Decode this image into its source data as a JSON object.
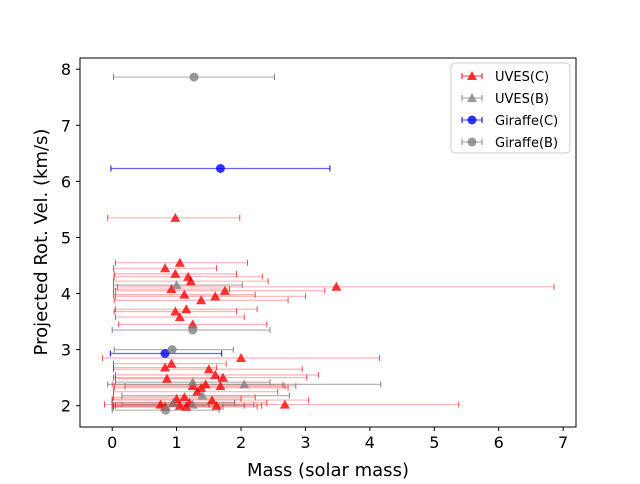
{
  "chart_data": {
    "type": "scatter",
    "title": "",
    "xlabel": "Mass (solar mass)",
    "ylabel": "Projected Rot. Vel. (km/s)",
    "xlim": [
      -0.5,
      7.2
    ],
    "ylim": [
      1.62,
      8.2
    ],
    "xticks": [
      0,
      1,
      2,
      3,
      4,
      5,
      6,
      7
    ],
    "yticks": [
      2,
      3,
      4,
      5,
      6,
      7,
      8
    ],
    "grid": false,
    "legend_position": "top-right",
    "colors": {
      "uves_c": "#ff0000",
      "uves_b": "#808080",
      "giraffe_c": "#0000ff",
      "giraffe_b": "#808080"
    },
    "series": [
      {
        "name": "UVES(C)",
        "marker": "triangle",
        "color": "#ff0000",
        "points": [
          {
            "x": 0.98,
            "y": 5.35,
            "xerr_low": 1.05,
            "xerr_high": 1.0
          },
          {
            "x": 1.05,
            "y": 4.55,
            "xerr_low": 1.0,
            "xerr_high": 1.05
          },
          {
            "x": 0.82,
            "y": 4.45,
            "xerr_low": 0.8,
            "xerr_high": 0.8
          },
          {
            "x": 0.98,
            "y": 4.35,
            "xerr_low": 0.95,
            "xerr_high": 0.95
          },
          {
            "x": 1.18,
            "y": 4.3,
            "xerr_low": 1.15,
            "xerr_high": 1.15
          },
          {
            "x": 1.22,
            "y": 4.22,
            "xerr_low": 1.2,
            "xerr_high": 1.2
          },
          {
            "x": 3.48,
            "y": 4.12,
            "xerr_low": 3.4,
            "xerr_high": 3.38
          },
          {
            "x": 0.92,
            "y": 4.08,
            "xerr_low": 0.9,
            "xerr_high": 0.9
          },
          {
            "x": 1.75,
            "y": 4.05,
            "xerr_low": 1.7,
            "xerr_high": 1.55
          },
          {
            "x": 1.12,
            "y": 3.98,
            "xerr_low": 1.1,
            "xerr_high": 1.1
          },
          {
            "x": 1.6,
            "y": 3.95,
            "xerr_low": 1.55,
            "xerr_high": 1.4
          },
          {
            "x": 1.38,
            "y": 3.88,
            "xerr_low": 1.35,
            "xerr_high": 1.35
          },
          {
            "x": 1.15,
            "y": 3.72,
            "xerr_low": 1.1,
            "xerr_high": 1.1
          },
          {
            "x": 0.98,
            "y": 3.68,
            "xerr_low": 0.95,
            "xerr_high": 0.95
          },
          {
            "x": 1.05,
            "y": 3.58,
            "xerr_low": 1.0,
            "xerr_high": 1.0
          },
          {
            "x": 1.25,
            "y": 3.45,
            "xerr_low": 1.15,
            "xerr_high": 1.15
          },
          {
            "x": 2.0,
            "y": 2.85,
            "xerr_low": 2.15,
            "xerr_high": 2.15
          },
          {
            "x": 0.92,
            "y": 2.75,
            "xerr_low": 0.9,
            "xerr_high": 0.85
          },
          {
            "x": 0.82,
            "y": 2.68,
            "xerr_low": 0.8,
            "xerr_high": 0.8
          },
          {
            "x": 1.5,
            "y": 2.65,
            "xerr_low": 1.48,
            "xerr_high": 1.45
          },
          {
            "x": 1.6,
            "y": 2.55,
            "xerr_low": 1.55,
            "xerr_high": 1.6
          },
          {
            "x": 1.72,
            "y": 2.5,
            "xerr_low": 1.7,
            "xerr_high": 1.3
          },
          {
            "x": 0.85,
            "y": 2.48,
            "xerr_low": 0.8,
            "xerr_high": 0.8
          },
          {
            "x": 1.45,
            "y": 2.38,
            "xerr_low": 1.45,
            "xerr_high": 1.2
          },
          {
            "x": 1.25,
            "y": 2.35,
            "xerr_low": 1.05,
            "xerr_high": 1.6
          },
          {
            "x": 1.68,
            "y": 2.35,
            "xerr_low": 1.65,
            "xerr_high": 1.0
          },
          {
            "x": 1.38,
            "y": 2.32,
            "xerr_low": 1.35,
            "xerr_high": 1.35
          },
          {
            "x": 1.32,
            "y": 2.25,
            "xerr_low": 1.3,
            "xerr_high": 1.25
          },
          {
            "x": 1.12,
            "y": 2.15,
            "xerr_low": 1.1,
            "xerr_high": 1.1
          },
          {
            "x": 1.0,
            "y": 2.12,
            "xerr_low": 1.0,
            "xerr_high": 1.0
          },
          {
            "x": 1.55,
            "y": 2.1,
            "xerr_low": 1.55,
            "xerr_high": 1.5
          },
          {
            "x": 1.2,
            "y": 2.05,
            "xerr_low": 1.2,
            "xerr_high": 1.2
          },
          {
            "x": 0.95,
            "y": 2.05,
            "xerr_low": 0.95,
            "xerr_high": 0.95
          },
          {
            "x": 0.75,
            "y": 2.02,
            "xerr_low": 0.75,
            "xerr_high": 0.75
          },
          {
            "x": 2.68,
            "y": 2.02,
            "xerr_low": 2.8,
            "xerr_high": 2.7
          },
          {
            "x": 1.05,
            "y": 2.0,
            "xerr_low": 1.0,
            "xerr_high": 1.0
          },
          {
            "x": 1.62,
            "y": 2.0,
            "xerr_low": 1.6,
            "xerr_high": 0.7
          },
          {
            "x": 0.82,
            "y": 1.98,
            "xerr_low": 0.8,
            "xerr_high": 0.9
          },
          {
            "x": 1.15,
            "y": 1.98,
            "xerr_low": 1.15,
            "xerr_high": 1.1
          }
        ]
      },
      {
        "name": "UVES(B)",
        "marker": "triangle",
        "color": "#808080",
        "points": [
          {
            "x": 1.0,
            "y": 4.15,
            "xerr_low": 0.98,
            "xerr_high": 1.02
          },
          {
            "x": 2.05,
            "y": 2.38,
            "xerr_low": 2.12,
            "xerr_high": 2.12
          },
          {
            "x": 1.25,
            "y": 2.42,
            "xerr_low": 1.2,
            "xerr_high": 1.2
          },
          {
            "x": 1.4,
            "y": 2.18,
            "xerr_low": 1.25,
            "xerr_high": 1.35
          },
          {
            "x": 0.95,
            "y": 2.05,
            "xerr_low": 0.95,
            "xerr_high": 0.95
          },
          {
            "x": 1.25,
            "y": 2.02,
            "xerr_low": 1.1,
            "xerr_high": 0.95
          }
        ]
      },
      {
        "name": "Giraffe(C)",
        "marker": "circle",
        "color": "#0000ff",
        "points": [
          {
            "x": 1.68,
            "y": 6.23,
            "xerr_low": 1.7,
            "xerr_high": 1.7
          },
          {
            "x": 0.82,
            "y": 2.93,
            "xerr_low": 0.85,
            "xerr_high": 0.88
          }
        ]
      },
      {
        "name": "Giraffe(B)",
        "marker": "circle",
        "color": "#808080",
        "points": [
          {
            "x": 1.27,
            "y": 7.86,
            "xerr_low": 1.25,
            "xerr_high": 1.25
          },
          {
            "x": 1.25,
            "y": 3.35,
            "xerr_low": 1.25,
            "xerr_high": 1.2
          },
          {
            "x": 0.93,
            "y": 3.0,
            "xerr_low": 0.9,
            "xerr_high": 0.95
          },
          {
            "x": 0.83,
            "y": 1.92,
            "xerr_low": 0.83,
            "xerr_high": 0.83
          }
        ]
      }
    ]
  }
}
